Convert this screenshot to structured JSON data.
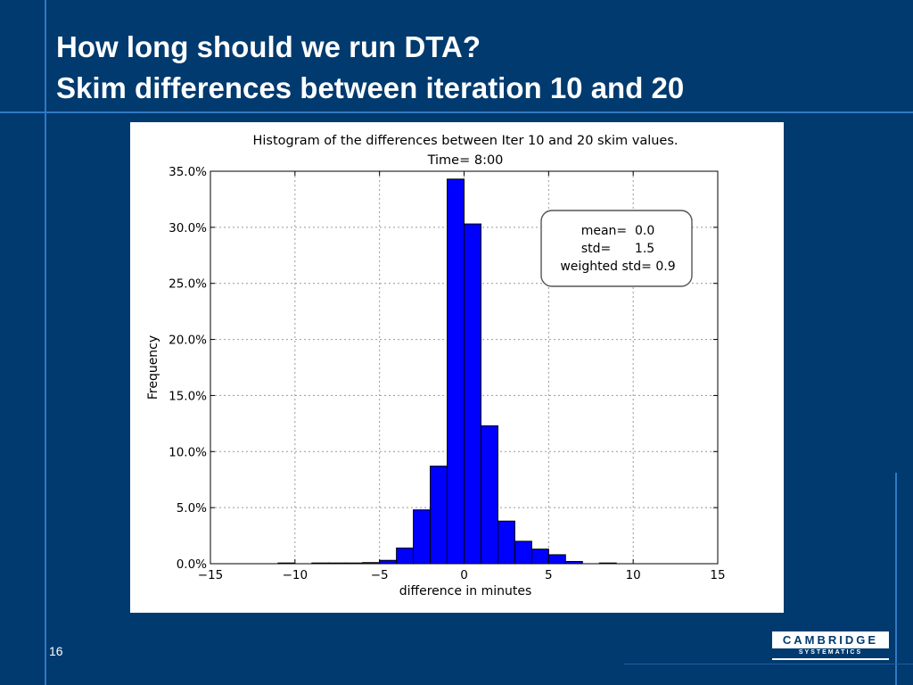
{
  "slide": {
    "title_line1": "How long should we run DTA?",
    "title_line2": "Skim differences between iteration 10 and 20",
    "page_number": "16",
    "logo_top": "CAMBRIDGE",
    "logo_bottom": "SYSTEMATICS",
    "bg_color": "#003a6e",
    "accent_color": "#2f79c4"
  },
  "chart_data": {
    "type": "bar",
    "title_line1": "Histogram of the differences between Iter 10 and 20 skim values.",
    "title_line2": "Time= 8:00",
    "xlabel": "difference in minutes",
    "ylabel": "Frequency",
    "xlim": [
      -15,
      15
    ],
    "ylim": [
      0,
      35
    ],
    "xticks": [
      -15,
      -10,
      -5,
      0,
      5,
      10,
      15
    ],
    "xtick_labels": [
      "−15",
      "−10",
      "−5",
      "0",
      "5",
      "10",
      "15"
    ],
    "yticks": [
      0,
      5,
      10,
      15,
      20,
      25,
      30,
      35
    ],
    "ytick_labels": [
      "0.0%",
      "5.0%",
      "10.0%",
      "15.0%",
      "20.0%",
      "25.0%",
      "30.0%",
      "35.0%"
    ],
    "grid": true,
    "bar_color": "#0000ff",
    "bin_width": 1,
    "bins": [
      {
        "x0": -11,
        "value": 0.05
      },
      {
        "x0": -9,
        "value": 0.05
      },
      {
        "x0": -8,
        "value": 0.05
      },
      {
        "x0": -7,
        "value": 0.05
      },
      {
        "x0": -6,
        "value": 0.1
      },
      {
        "x0": -5,
        "value": 0.3
      },
      {
        "x0": -4,
        "value": 1.4
      },
      {
        "x0": -3,
        "value": 4.8
      },
      {
        "x0": -2,
        "value": 8.7
      },
      {
        "x0": -1,
        "value": 34.3
      },
      {
        "x0": 0,
        "value": 30.3
      },
      {
        "x0": 1,
        "value": 12.3
      },
      {
        "x0": 2,
        "value": 3.8
      },
      {
        "x0": 3,
        "value": 2.0
      },
      {
        "x0": 4,
        "value": 1.3
      },
      {
        "x0": 5,
        "value": 0.8
      },
      {
        "x0": 6,
        "value": 0.2
      },
      {
        "x0": 8,
        "value": 0.05
      }
    ],
    "annotation": {
      "lines": [
        "mean=  0.0",
        "std=      1.5",
        "weighted std= 0.9"
      ],
      "placement": "top-right"
    }
  }
}
